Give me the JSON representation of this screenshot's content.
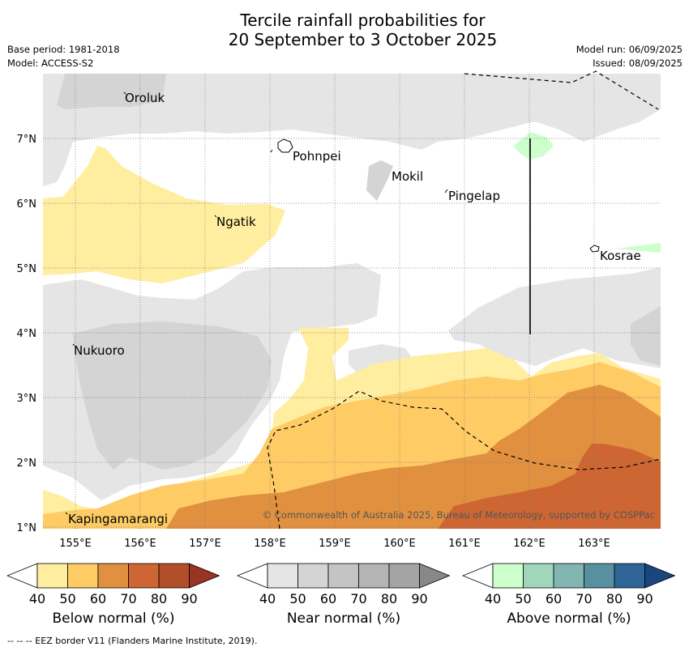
{
  "title_line1": "Tercile rainfall probabilities for",
  "title_line2": "20 September to 3 October 2025",
  "base_period": "Base period: 1981-2018",
  "model": "Model: ACCESS-S2",
  "model_run": "Model run: 06/09/2025",
  "issued": "Issued: 08/09/2025",
  "longitude_labels": [
    "155°E",
    "156°E",
    "157°E",
    "158°E",
    "159°E",
    "160°E",
    "161°E",
    "162°E",
    "163°E"
  ],
  "latitude_labels": [
    "7°N",
    "6°N",
    "5°N",
    "4°N",
    "3°N",
    "2°N",
    "1°N"
  ],
  "places": [
    "Oroluk",
    "Pohnpei",
    "Mokil",
    "Pingelap",
    "Ngatik",
    "Kosrae",
    "Nukuoro",
    "Kapingamarangi"
  ],
  "copyright": "© Commonwealth of Australia 2025, Bureau of Meteorology, supported by COSPPac",
  "colorbars": [
    {
      "label": "Below normal (%)",
      "ticks": [
        "40",
        "50",
        "60",
        "70",
        "80",
        "90"
      ],
      "colors": [
        "#ffffff",
        "#ffeda0",
        "#fecb65",
        "#e19040",
        "#cd6633",
        "#b24f2a",
        "#993322"
      ]
    },
    {
      "label": "Near normal (%)",
      "ticks": [
        "40",
        "50",
        "60",
        "70",
        "80",
        "90"
      ],
      "colors": [
        "#ffffff",
        "#e5e5e5",
        "#d4d4d4",
        "#c4c4c4",
        "#b4b4b4",
        "#a4a4a4",
        "#888888"
      ]
    },
    {
      "label": "Above normal (%)",
      "ticks": [
        "40",
        "50",
        "60",
        "70",
        "80",
        "90"
      ],
      "colors": [
        "#ffffff",
        "#ccffcc",
        "#a0d6bc",
        "#81b5b1",
        "#5890a0",
        "#2e6496",
        "#1a4680"
      ]
    }
  ],
  "footer": "--  --  -- EEZ border V11 (Flanders Marine Institute, 2019)."
}
